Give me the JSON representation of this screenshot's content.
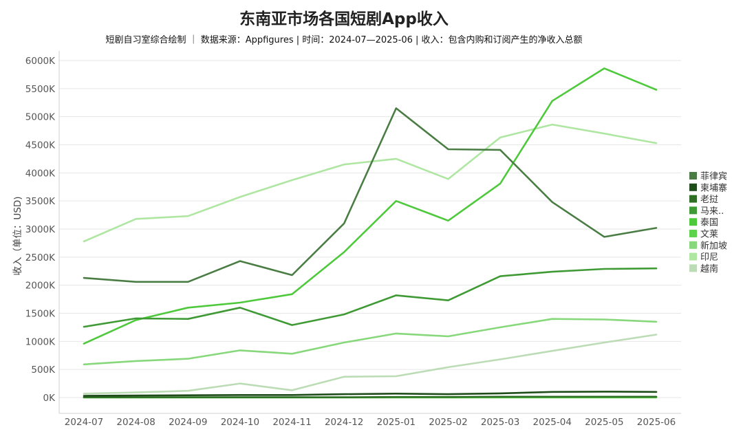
{
  "chart_data": {
    "type": "line",
    "title": "东南亚市场各国短剧App收入",
    "subtitle": "短剧自习室综合绘制 ｜ 数据来源：Appfigures | 时间：2024-07—2025-06 | 收入：包含内购和订阅产生的净收入总额",
    "xlabel": "",
    "ylabel": "收入（单位：USD)",
    "ylim": [
      -250,
      6200
    ],
    "y_ticks": [
      0,
      500,
      1000,
      1500,
      2000,
      2500,
      3000,
      3500,
      4000,
      4500,
      5000,
      5500,
      6000
    ],
    "y_tick_labels": [
      "0K",
      "500K",
      "1000K",
      "1500K",
      "2000K",
      "2500K",
      "3000K",
      "3500K",
      "4000K",
      "4500K",
      "5000K",
      "5500K",
      "6000K"
    ],
    "grid": true,
    "legend_position": "right",
    "categories": [
      "2024-07",
      "2024-08",
      "2024-09",
      "2024-10",
      "2024-11",
      "2024-12",
      "2025-01",
      "2025-02",
      "2025-03",
      "2025-04",
      "2025-05",
      "2025-06"
    ],
    "series": [
      {
        "name": "菲律宾",
        "color": "#4a7d44",
        "values": [
          2130,
          2060,
          2060,
          2430,
          2180,
          3100,
          5150,
          4420,
          4410,
          3480,
          2860,
          3020
        ]
      },
      {
        "name": "柬埔寨",
        "color": "#1f4d1a",
        "values": [
          30,
          35,
          40,
          45,
          45,
          60,
          70,
          60,
          75,
          100,
          105,
          100
        ]
      },
      {
        "name": "老挝",
        "color": "#2f6e25",
        "values": [
          5,
          5,
          5,
          5,
          5,
          5,
          10,
          10,
          15,
          15,
          15,
          15
        ]
      },
      {
        "name": "马来..",
        "color": "#3f9a35",
        "values": [
          1260,
          1410,
          1400,
          1600,
          1290,
          1480,
          1820,
          1730,
          2160,
          2240,
          2290,
          2300
        ]
      },
      {
        "name": "泰国",
        "color": "#4ec93c",
        "values": [
          960,
          1380,
          1600,
          1690,
          1840,
          2590,
          3500,
          3150,
          3810,
          5280,
          5860,
          5480
        ]
      },
      {
        "name": "文莱",
        "color": "#5dd34b",
        "values": [
          0,
          0,
          0,
          0,
          0,
          0,
          0,
          0,
          0,
          0,
          0,
          0
        ]
      },
      {
        "name": "新加坡",
        "color": "#86d87a",
        "values": [
          590,
          650,
          690,
          840,
          780,
          980,
          1140,
          1090,
          1250,
          1400,
          1390,
          1350
        ]
      },
      {
        "name": "印尼",
        "color": "#aee6a2",
        "values": [
          2780,
          3180,
          3230,
          3570,
          3870,
          4150,
          4250,
          3890,
          4630,
          4860,
          4700,
          4530
        ]
      },
      {
        "name": "越南",
        "color": "#bcdcb5",
        "values": [
          70,
          90,
          120,
          250,
          130,
          370,
          380,
          540,
          680,
          830,
          980,
          1120
        ]
      }
    ]
  }
}
